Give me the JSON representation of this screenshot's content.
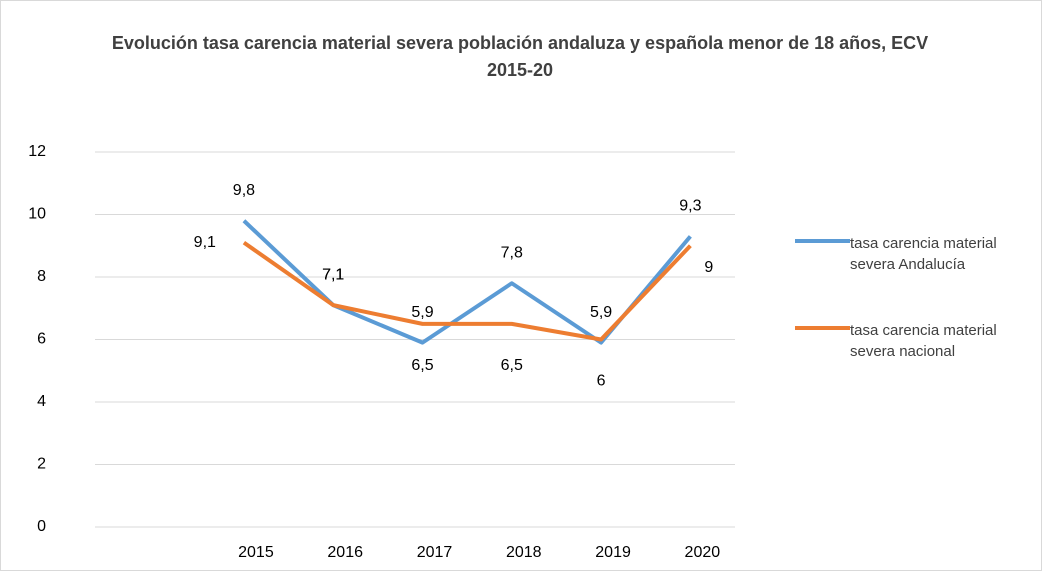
{
  "chart_data": {
    "type": "line",
    "title": "Evolución tasa carencia material severa población andaluza y española menor de 18 años, ECV 2015-20",
    "categories": [
      null,
      "2015",
      "2016",
      "2017",
      "2018",
      "2019",
      "2020"
    ],
    "series": [
      {
        "name": "tasa carencia material severa Andalucía",
        "color": "#5b9bd5",
        "values": [
          null,
          9.8,
          7.1,
          5.9,
          7.8,
          5.9,
          9.3
        ],
        "value_labels": [
          null,
          "9,8",
          "7,1",
          "5,9",
          "7,8",
          "5,9",
          "9,3"
        ]
      },
      {
        "name": "tasa carencia material severa nacional",
        "color": "#ed7d31",
        "values": [
          null,
          9.1,
          7.1,
          6.5,
          6.5,
          6.0,
          9.0
        ],
        "value_labels": [
          null,
          "9,1",
          "7,1",
          "6,5",
          "6,5",
          "6",
          "9"
        ]
      }
    ],
    "ylim": [
      0,
      12
    ],
    "yticks": [
      0,
      2,
      4,
      6,
      8,
      10,
      12
    ],
    "grid": true,
    "legend": "right"
  }
}
